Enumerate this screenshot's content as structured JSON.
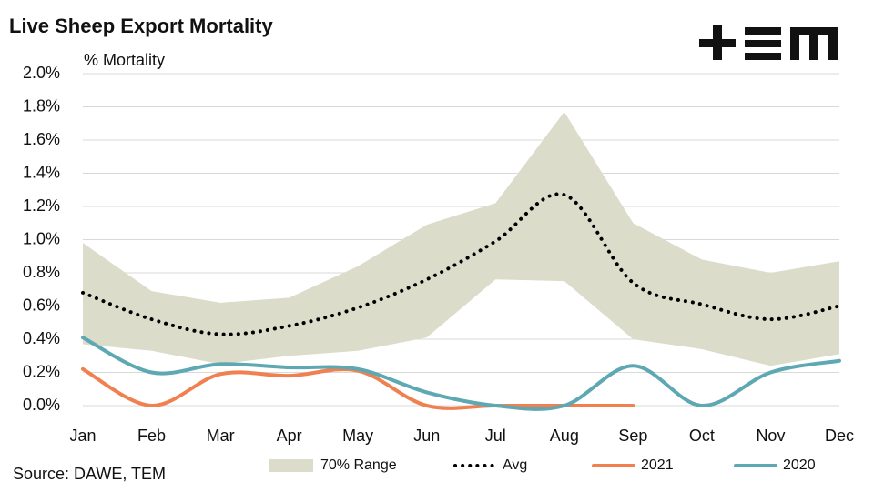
{
  "chart_data": {
    "type": "line",
    "title": "Live Sheep Export Mortality",
    "y_label": "% Mortality",
    "source": "Source: DAWE, TEM",
    "categories": [
      "Jan",
      "Feb",
      "Mar",
      "Apr",
      "May",
      "Jun",
      "Jul",
      "Aug",
      "Sep",
      "Oct",
      "Nov",
      "Dec"
    ],
    "ylim": [
      0,
      2.0
    ],
    "yticks": [
      {
        "value": 0,
        "label": "0.0%"
      },
      {
        "value": 0.2,
        "label": "0.2%"
      },
      {
        "value": 0.4,
        "label": "0.4%"
      },
      {
        "value": 0.6,
        "label": "0.6%"
      },
      {
        "value": 0.8,
        "label": "0.8%"
      },
      {
        "value": 1.0,
        "label": "1.0%"
      },
      {
        "value": 1.2,
        "label": "1.2%"
      },
      {
        "value": 1.4,
        "label": "1.4%"
      },
      {
        "value": 1.6,
        "label": "1.6%"
      },
      {
        "value": 1.8,
        "label": "1.8%"
      },
      {
        "value": 2.0,
        "label": "2.0%"
      }
    ],
    "grid": true,
    "series": [
      {
        "name": "70% Range",
        "kind": "band",
        "color": "#dcdccb",
        "high": [
          0.98,
          0.69,
          0.62,
          0.65,
          0.84,
          1.09,
          1.22,
          1.77,
          1.1,
          0.88,
          0.8,
          0.87
        ],
        "low": [
          0.37,
          0.33,
          0.25,
          0.3,
          0.33,
          0.41,
          0.76,
          0.75,
          0.4,
          0.34,
          0.24,
          0.31
        ]
      },
      {
        "name": "Avg",
        "kind": "dotted",
        "color": "#000000",
        "values": [
          0.68,
          0.52,
          0.43,
          0.48,
          0.59,
          0.76,
          0.99,
          1.27,
          0.74,
          0.61,
          0.52,
          0.6
        ]
      },
      {
        "name": "2021",
        "kind": "line",
        "color": "#f08050",
        "values": [
          0.22,
          0,
          0.19,
          0.18,
          0.21,
          0,
          0,
          0,
          0,
          null,
          null,
          null
        ]
      },
      {
        "name": "2020",
        "kind": "line",
        "color": "#5ea8b3",
        "values": [
          0.41,
          0.2,
          0.25,
          0.23,
          0.22,
          0.08,
          0,
          0,
          0.24,
          0,
          0.2,
          0.27
        ]
      }
    ]
  }
}
